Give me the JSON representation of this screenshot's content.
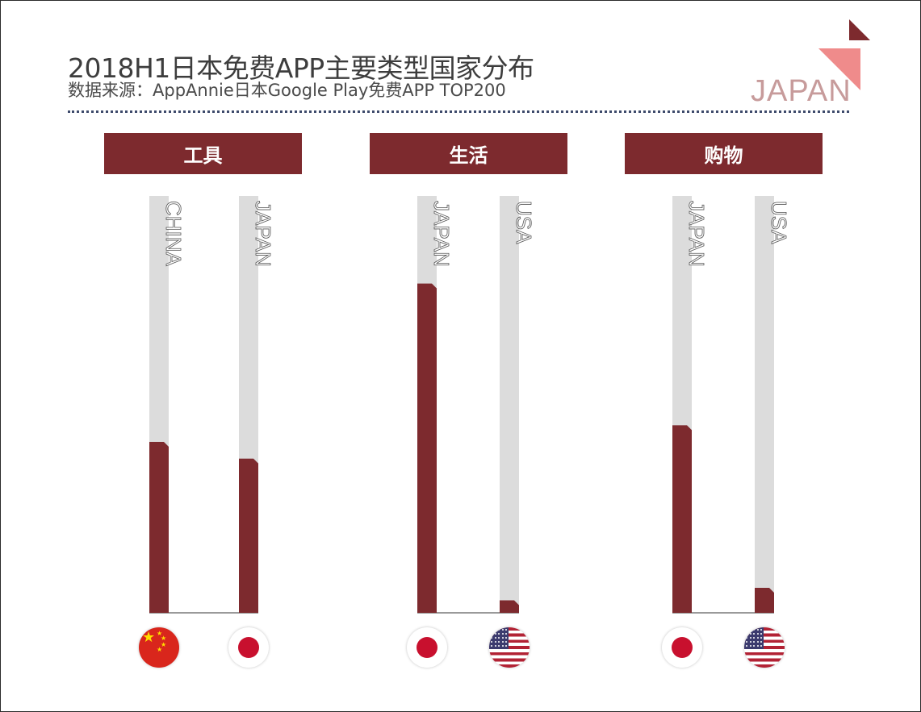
{
  "header": {
    "title": "2018H1日本免费APP主要类型国家分布",
    "subtitle": "数据来源：AppAnnie日本Google Play免费APP TOP200",
    "badge": "JAPAN"
  },
  "colors": {
    "bar": "#7d2a2e",
    "track": "#dcdcdc",
    "header_bg": "#7d2a2e",
    "badge_text": "#c79b9b",
    "deco_dark": "#7d2a2e",
    "deco_light": "#ef8b8b"
  },
  "chart_data": {
    "type": "bar",
    "orientation": "vertical",
    "ylim": [
      0,
      1
    ],
    "groups": [
      {
        "category": "工具",
        "bars": [
          {
            "label": "CHINA",
            "value": 0.41,
            "flag": "china-flag"
          },
          {
            "label": "JAPAN",
            "value": 0.37,
            "flag": "japan-flag"
          }
        ]
      },
      {
        "category": "生活",
        "bars": [
          {
            "label": "JAPAN",
            "value": 0.79,
            "flag": "japan-flag"
          },
          {
            "label": "USA",
            "value": 0.03,
            "flag": "usa-flag"
          }
        ]
      },
      {
        "category": "购物",
        "bars": [
          {
            "label": "JAPAN",
            "value": 0.45,
            "flag": "japan-flag"
          },
          {
            "label": "USA",
            "value": 0.06,
            "flag": "usa-flag"
          }
        ]
      }
    ]
  }
}
